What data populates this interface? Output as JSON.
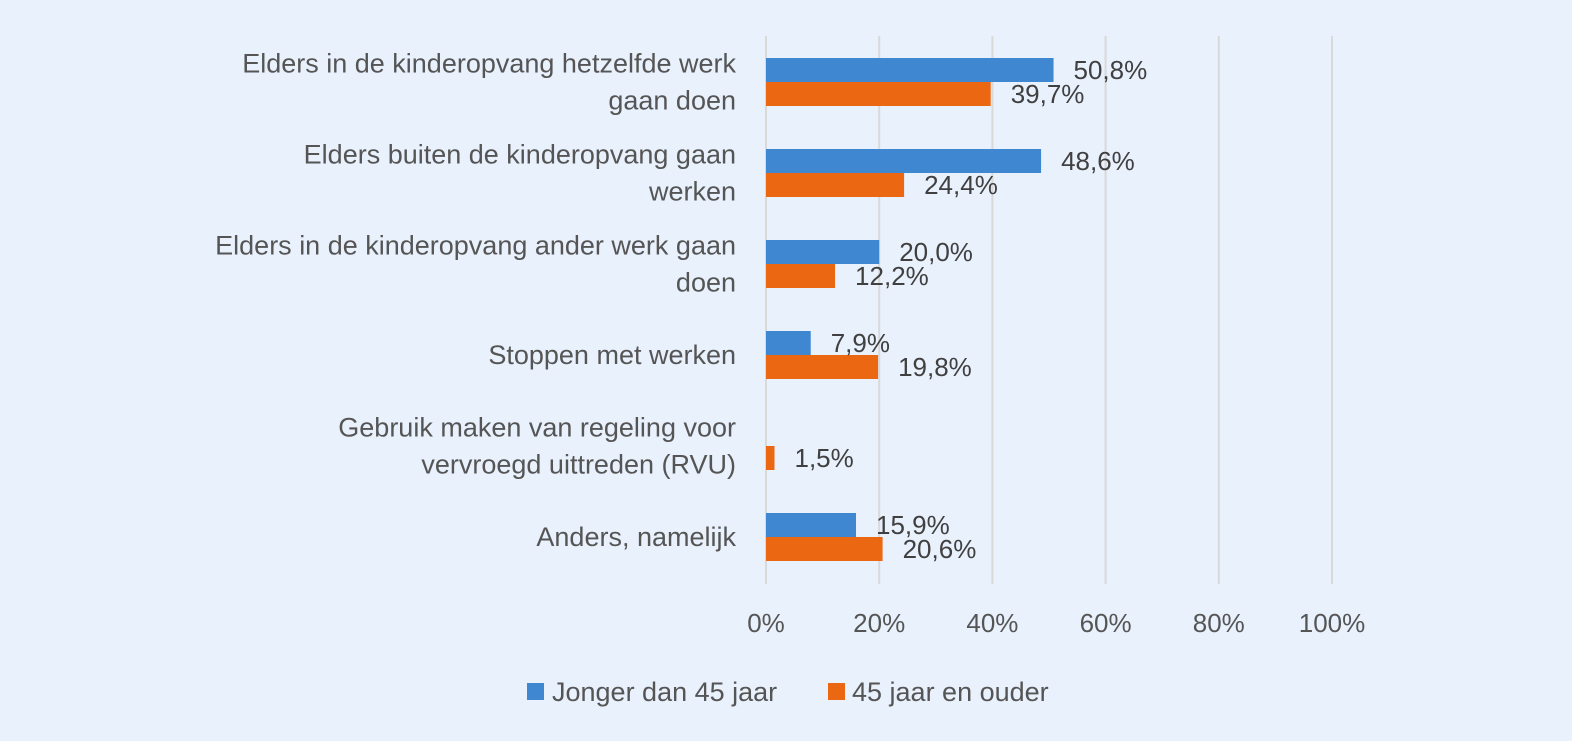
{
  "chart_data": {
    "type": "bar",
    "orientation": "horizontal",
    "categories": [
      [
        "Elders in de kinderopvang hetzelfde werk",
        "gaan doen"
      ],
      [
        "Elders buiten de kinderopvang gaan",
        "werken"
      ],
      [
        "Elders in de kinderopvang ander werk gaan",
        "doen"
      ],
      [
        "Stoppen met werken"
      ],
      [
        "Gebruik maken van regeling voor",
        "vervroegd uittreden (RVU)"
      ],
      [
        "Anders, namelijk"
      ]
    ],
    "series": [
      {
        "name": "Jonger dan 45 jaar",
        "color": "#3f87d1",
        "values": [
          50.8,
          48.6,
          20.0,
          7.9,
          null,
          15.9
        ],
        "labels": [
          "50,8%",
          "48,6%",
          "20,0%",
          "7,9%",
          "",
          "15,9%"
        ]
      },
      {
        "name": "45 jaar en ouder",
        "color": "#ec6711",
        "values": [
          39.7,
          24.4,
          12.2,
          19.8,
          1.5,
          20.6
        ],
        "labels": [
          "39,7%",
          "24,4%",
          "12,2%",
          "19,8%",
          "1,5%",
          "20,6%"
        ]
      }
    ],
    "xlim": [
      0,
      100
    ],
    "xticks": [
      0,
      20,
      40,
      60,
      80,
      100
    ],
    "xtick_labels": [
      "0%",
      "20%",
      "40%",
      "60%",
      "80%",
      "100%"
    ],
    "grid": true,
    "legend_position": "bottom"
  }
}
